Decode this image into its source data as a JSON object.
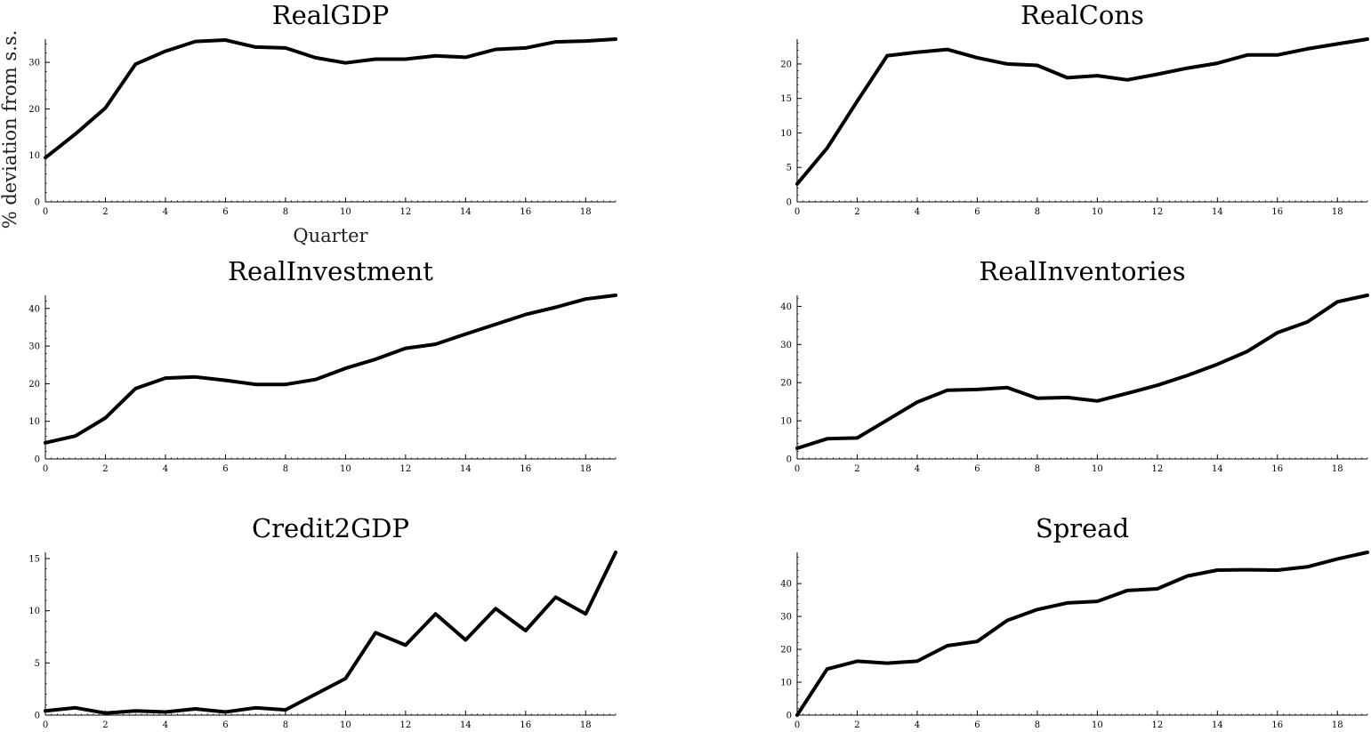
{
  "chart_data": [
    {
      "type": "line",
      "title": "RealGDP",
      "xlabel": "Quarter",
      "ylabel": "% deviation from s.s.",
      "x": [
        0,
        1,
        2,
        3,
        4,
        5,
        6,
        7,
        8,
        9,
        10,
        11,
        12,
        13,
        14,
        15,
        16,
        17,
        18,
        19
      ],
      "values": [
        9.5,
        14.6,
        20.2,
        29.6,
        32.4,
        34.5,
        34.8,
        33.3,
        33.1,
        31.0,
        29.9,
        30.7,
        30.7,
        31.4,
        31.1,
        32.8,
        33.1,
        34.4,
        34.6,
        35.0
      ],
      "xlim": [
        0,
        19
      ],
      "ylim": [
        0,
        35
      ],
      "xticks": [
        0,
        2,
        4,
        6,
        8,
        10,
        12,
        14,
        16,
        18
      ],
      "yticks": [
        0,
        10,
        20,
        30
      ],
      "grid": false
    },
    {
      "type": "line",
      "title": "RealCons",
      "xlabel": "",
      "ylabel": "",
      "x": [
        0,
        1,
        2,
        3,
        4,
        5,
        6,
        7,
        8,
        9,
        10,
        11,
        12,
        13,
        14,
        15,
        16,
        17,
        18,
        19
      ],
      "values": [
        2.6,
        7.8,
        14.6,
        21.2,
        21.7,
        22.1,
        20.9,
        20.0,
        19.8,
        18.0,
        18.3,
        17.7,
        18.5,
        19.4,
        20.1,
        21.3,
        21.3,
        22.2,
        22.9,
        23.6
      ],
      "xlim": [
        0,
        19
      ],
      "ylim": [
        0,
        23.6
      ],
      "xticks": [
        0,
        2,
        4,
        6,
        8,
        10,
        12,
        14,
        16,
        18
      ],
      "yticks": [
        0,
        5,
        10,
        15,
        20
      ],
      "grid": false
    },
    {
      "type": "line",
      "title": "RealInvestment",
      "xlabel": "",
      "ylabel": "",
      "x": [
        0,
        1,
        2,
        3,
        4,
        5,
        6,
        7,
        8,
        9,
        10,
        11,
        12,
        13,
        14,
        15,
        16,
        17,
        18,
        19
      ],
      "values": [
        4.3,
        6.1,
        10.9,
        18.7,
        21.5,
        21.8,
        20.9,
        19.8,
        19.8,
        21.1,
        24.1,
        26.5,
        29.4,
        30.5,
        33.2,
        35.8,
        38.4,
        40.3,
        42.5,
        43.5
      ],
      "xlim": [
        0,
        19
      ],
      "ylim": [
        0,
        43.5
      ],
      "xticks": [
        0,
        2,
        4,
        6,
        8,
        10,
        12,
        14,
        16,
        18
      ],
      "yticks": [
        0,
        10,
        20,
        30,
        40
      ],
      "grid": false
    },
    {
      "type": "line",
      "title": "RealInventories",
      "xlabel": "",
      "ylabel": "",
      "x": [
        0,
        1,
        2,
        3,
        4,
        5,
        6,
        7,
        8,
        9,
        10,
        11,
        12,
        13,
        14,
        15,
        16,
        17,
        18,
        19
      ],
      "values": [
        2.8,
        5.3,
        5.5,
        10.2,
        14.9,
        18.0,
        18.2,
        18.7,
        15.9,
        16.1,
        15.2,
        17.2,
        19.3,
        21.9,
        24.8,
        28.2,
        33.1,
        35.9,
        41.2,
        42.9
      ],
      "xlim": [
        0,
        19
      ],
      "ylim": [
        0,
        42.9
      ],
      "xticks": [
        0,
        2,
        4,
        6,
        8,
        10,
        12,
        14,
        16,
        18
      ],
      "yticks": [
        0,
        10,
        20,
        30,
        40
      ],
      "grid": false
    },
    {
      "type": "line",
      "title": "Credit2GDP",
      "xlabel": "",
      "ylabel": "",
      "x": [
        0,
        1,
        2,
        3,
        4,
        5,
        6,
        7,
        8,
        9,
        10,
        11,
        12,
        13,
        14,
        15,
        16,
        17,
        18,
        19
      ],
      "values": [
        0.4,
        0.7,
        0.2,
        0.4,
        0.3,
        0.6,
        0.3,
        0.7,
        0.5,
        2.0,
        3.5,
        7.9,
        6.7,
        9.7,
        7.2,
        10.2,
        8.1,
        11.3,
        9.7,
        15.6
      ],
      "xlim": [
        0,
        19
      ],
      "ylim": [
        0,
        15.6
      ],
      "xticks": [
        0,
        2,
        4,
        6,
        8,
        10,
        12,
        14,
        16,
        18
      ],
      "yticks": [
        0,
        5,
        10,
        15
      ],
      "grid": false
    },
    {
      "type": "line",
      "title": "Spread",
      "xlabel": "",
      "ylabel": "",
      "x": [
        0,
        1,
        2,
        3,
        4,
        5,
        6,
        7,
        8,
        9,
        10,
        11,
        12,
        13,
        14,
        15,
        16,
        17,
        18,
        19
      ],
      "values": [
        0.0,
        14.0,
        16.4,
        15.8,
        16.4,
        21.1,
        22.4,
        28.8,
        32.1,
        34.1,
        34.6,
        37.9,
        38.4,
        42.3,
        44.1,
        44.2,
        44.1,
        45.1,
        47.5,
        49.5
      ],
      "xlim": [
        0,
        19
      ],
      "ylim": [
        0,
        49.5
      ],
      "xticks": [
        0,
        2,
        4,
        6,
        8,
        10,
        12,
        14,
        16,
        18
      ],
      "yticks": [
        0,
        10,
        20,
        30,
        40
      ],
      "grid": false
    }
  ]
}
